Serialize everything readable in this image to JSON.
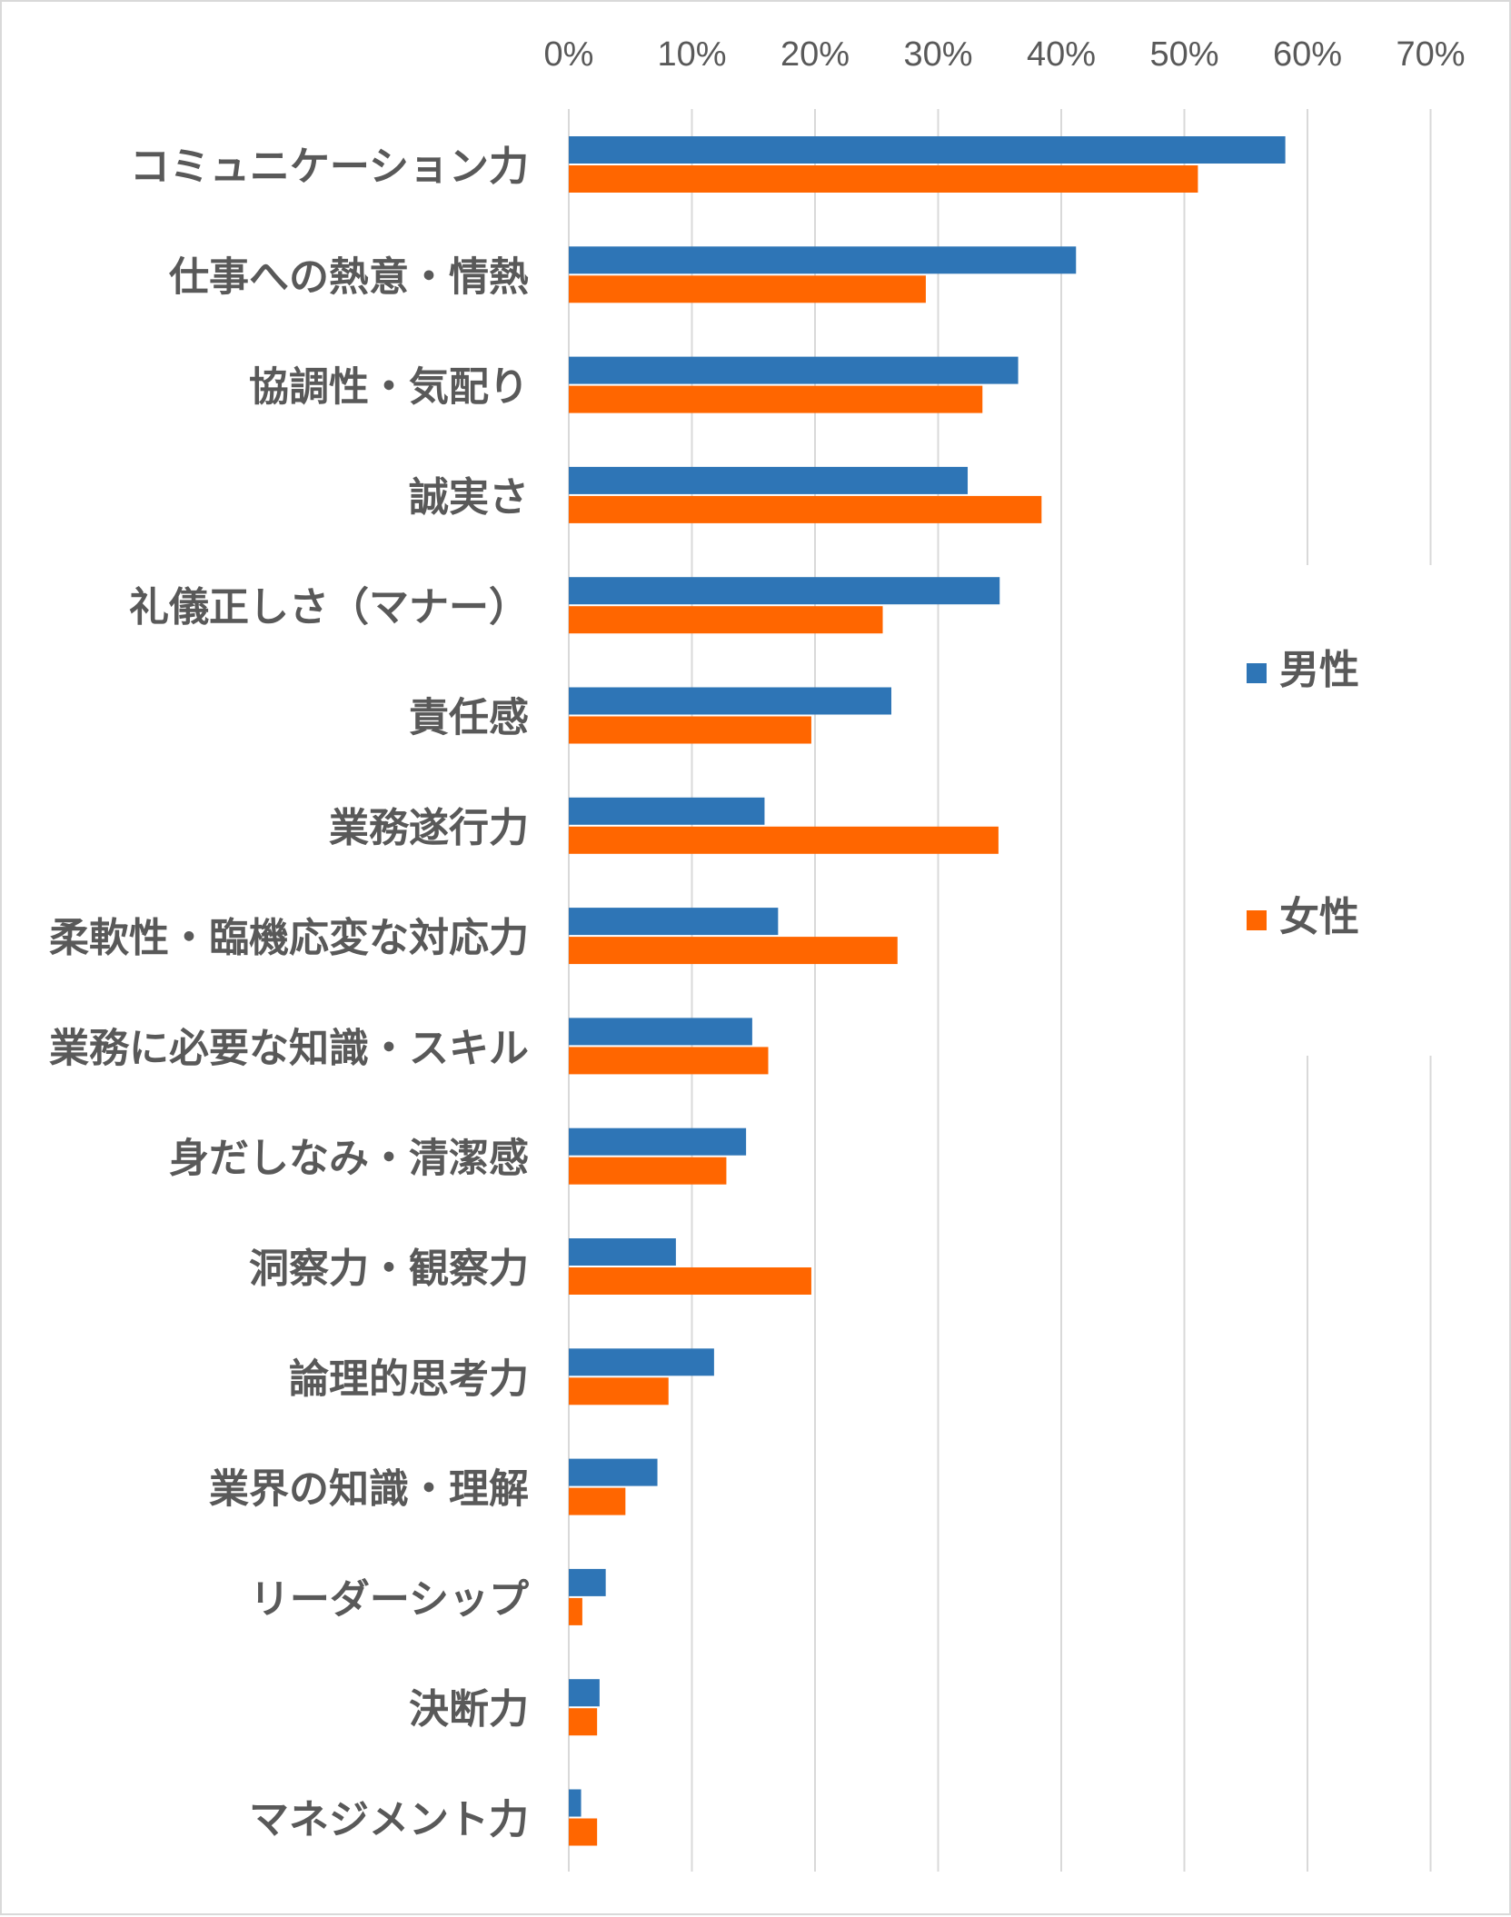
{
  "chart_data": {
    "type": "bar",
    "orientation": "horizontal",
    "title": "",
    "xlabel": "",
    "ylabel": "",
    "xlim": [
      0,
      0.7
    ],
    "ticks": [
      "0%",
      "10%",
      "20%",
      "30%",
      "40%",
      "50%",
      "60%",
      "70%"
    ],
    "tick_values": [
      0,
      0.1,
      0.2,
      0.3,
      0.4,
      0.5,
      0.6,
      0.7
    ],
    "grid": true,
    "legend_position": "right",
    "categories": [
      "コミュニケーション力",
      "仕事への熱意・情熱",
      "協調性・気配り",
      "誠実さ",
      "礼儀正しさ（マナー）",
      "責任感",
      "業務遂行力",
      "柔軟性・臨機応変な対応力",
      "業務に必要な知識・スキル",
      "身だしなみ・清潔感",
      "洞察力・観察力",
      "論理的思考力",
      "業界の知識・理解",
      "リーダーシップ",
      "決断力",
      "マネジメント力"
    ],
    "series": [
      {
        "name": "男性",
        "color": "#2e75b6",
        "values": [
          0.582,
          0.412,
          0.365,
          0.324,
          0.35,
          0.262,
          0.159,
          0.17,
          0.149,
          0.144,
          0.087,
          0.118,
          0.072,
          0.03,
          0.025,
          0.01
        ]
      },
      {
        "name": "女性",
        "color": "#ff6600",
        "values": [
          0.511,
          0.29,
          0.336,
          0.384,
          0.255,
          0.197,
          0.349,
          0.267,
          0.162,
          0.128,
          0.197,
          0.081,
          0.046,
          0.011,
          0.023,
          0.023
        ]
      }
    ]
  }
}
